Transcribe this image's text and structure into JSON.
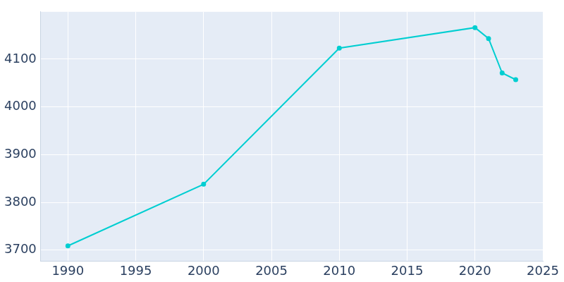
{
  "chart_data": {
    "type": "line",
    "x": [
      1990,
      2000,
      2010,
      2020,
      2021,
      2022,
      2023
    ],
    "values": [
      3709,
      3838,
      4123,
      4166,
      4143,
      4071,
      4057
    ],
    "color": "#00ced1",
    "marker": "circle",
    "xlim": [
      1988,
      2025
    ],
    "xticks": [
      1990,
      1995,
      2000,
      2005,
      2010,
      2015,
      2020,
      2025
    ],
    "ylim": [
      3677,
      4199
    ],
    "yticks": [
      3700,
      3800,
      3900,
      4000,
      4100
    ],
    "grid": true
  }
}
